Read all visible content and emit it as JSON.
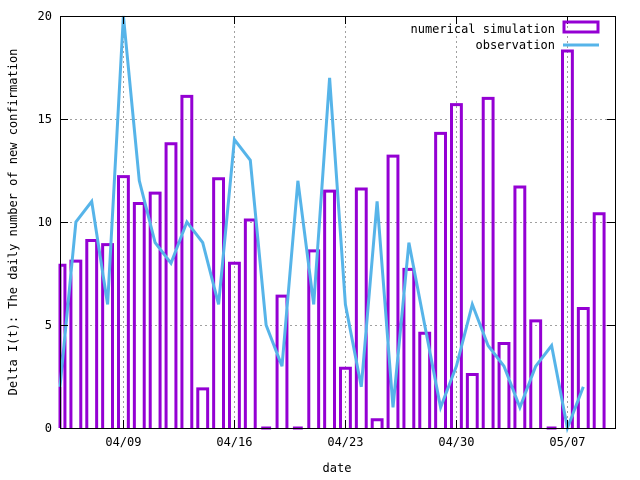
{
  "chart_data": {
    "type": "bar",
    "title": "",
    "xlabel": "date",
    "ylabel": "Delta I(t): The daily number of new confirmation",
    "ylim": [
      0,
      20
    ],
    "yticks": [
      0,
      5,
      10,
      15,
      20
    ],
    "xlim": [
      "2020-04-05",
      "2020-05-10"
    ],
    "xtick_labels": [
      "04/09",
      "04/16",
      "04/23",
      "04/30",
      "05/07"
    ],
    "xtick_dates": [
      "2020-04-09",
      "2020-04-16",
      "2020-04-23",
      "2020-04-30",
      "2020-05-07"
    ],
    "grid": true,
    "legend_position": "top-right",
    "dates": [
      "2020-04-05",
      "2020-04-06",
      "2020-04-07",
      "2020-04-08",
      "2020-04-09",
      "2020-04-10",
      "2020-04-11",
      "2020-04-12",
      "2020-04-13",
      "2020-04-14",
      "2020-04-15",
      "2020-04-16",
      "2020-04-17",
      "2020-04-18",
      "2020-04-19",
      "2020-04-20",
      "2020-04-21",
      "2020-04-22",
      "2020-04-23",
      "2020-04-24",
      "2020-04-25",
      "2020-04-26",
      "2020-04-27",
      "2020-04-28",
      "2020-04-29",
      "2020-04-30",
      "2020-05-01",
      "2020-05-02",
      "2020-05-03",
      "2020-05-04",
      "2020-05-05",
      "2020-05-06",
      "2020-05-07",
      "2020-05-08",
      "2020-05-09",
      "2020-05-10"
    ],
    "series": [
      {
        "name": "numerical simulation",
        "type": "bar",
        "color": "#9400d3",
        "values": [
          7.9,
          8.1,
          9.1,
          8.9,
          12.2,
          10.9,
          11.4,
          13.8,
          16.1,
          1.9,
          12.1,
          8.0,
          10.1,
          0,
          6.4,
          0,
          8.6,
          11.5,
          2.9,
          11.6,
          0.4,
          13.2,
          7.7,
          4.6,
          14.3,
          15.7,
          2.6,
          16.0,
          4.1,
          11.7,
          5.2,
          0,
          18.3,
          5.8,
          10.4,
          null
        ]
      },
      {
        "name": "observation",
        "type": "line",
        "color": "#56b4e9",
        "values": [
          2,
          10,
          11,
          6,
          20,
          12,
          9,
          8,
          10,
          9,
          6,
          14,
          13,
          5,
          3,
          12,
          6,
          17,
          6,
          2,
          11,
          1,
          9,
          5,
          1,
          3,
          6,
          4,
          3,
          1,
          3,
          4,
          0,
          2,
          null,
          null
        ]
      }
    ]
  }
}
